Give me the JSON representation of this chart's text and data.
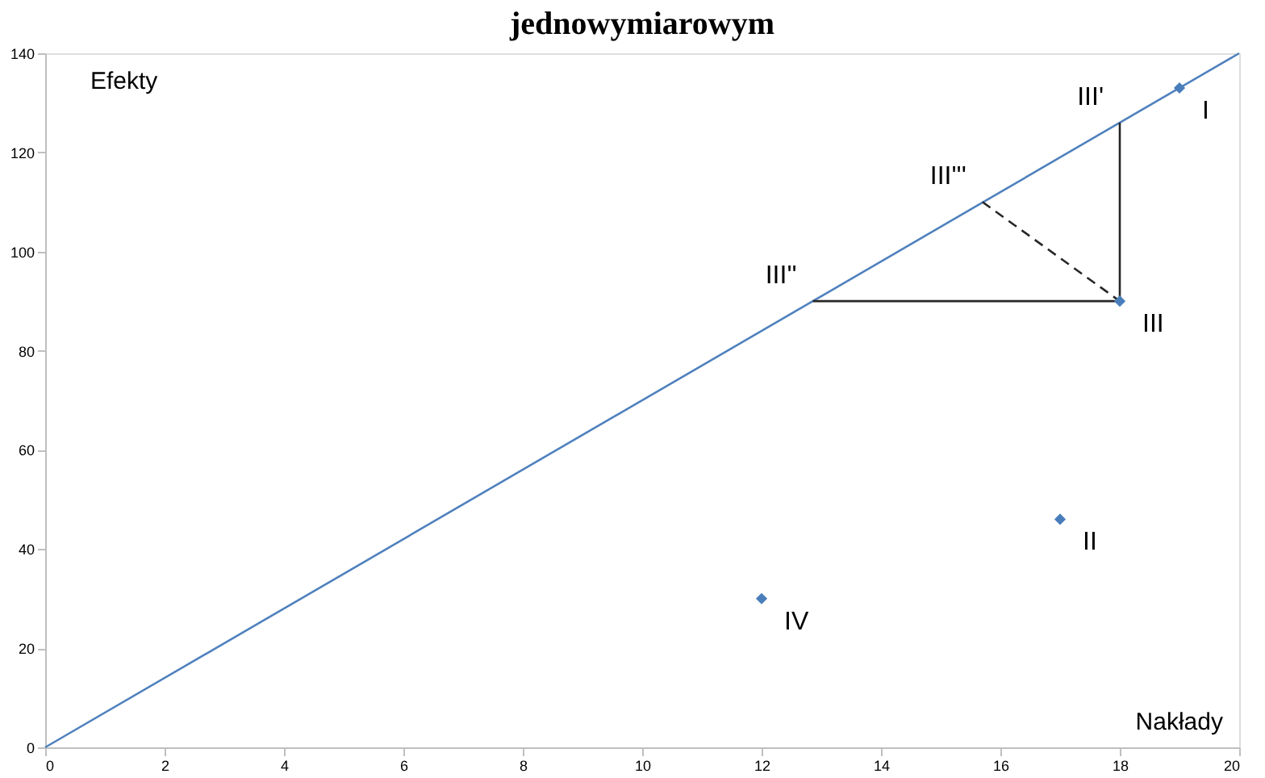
{
  "chart_data": {
    "type": "scatter",
    "title": "jednowymiarowym",
    "xlabel": "Nakłady",
    "ylabel": "Efekty",
    "xlim": [
      0,
      20
    ],
    "xticks": [
      0,
      2,
      4,
      6,
      8,
      10,
      12,
      14,
      16,
      18,
      20
    ],
    "ylim": [
      0,
      140
    ],
    "yticks": [
      0,
      20,
      40,
      60,
      80,
      100,
      120,
      140
    ],
    "series": [
      {
        "type": "line",
        "color": "#4f81bd",
        "x": [
          0,
          20
        ],
        "values": [
          0,
          140
        ],
        "line_style": "solid",
        "marker": "none"
      },
      {
        "type": "line",
        "color": "#262626",
        "x": [
          18,
          18
        ],
        "values": [
          90,
          126
        ],
        "line_style": "solid",
        "marker": "none"
      },
      {
        "type": "line",
        "color": "#262626",
        "x": [
          18,
          12.86
        ],
        "values": [
          90,
          90
        ],
        "line_style": "solid",
        "marker": "none"
      },
      {
        "type": "line",
        "color": "#262626",
        "x": [
          18,
          15.7
        ],
        "values": [
          90,
          110
        ],
        "line_style": "dashed",
        "marker": "none"
      },
      {
        "color": "#4a7ebb",
        "x": [
          19,
          17,
          18,
          12
        ],
        "values": [
          133,
          46,
          90,
          30
        ],
        "marker": "diamond"
      }
    ],
    "annotations": [
      {
        "text": "I",
        "x": 19,
        "y": 133
      },
      {
        "text": "II",
        "x": 17,
        "y": 46
      },
      {
        "text": "III",
        "x": 18,
        "y": 90
      },
      {
        "text": "IV",
        "x": 12,
        "y": 30
      },
      {
        "text": "III'",
        "x": 18,
        "y": 126
      },
      {
        "text": "III''",
        "x": 12.86,
        "y": 90
      },
      {
        "text": "III'''",
        "x": 15.7,
        "y": 110
      }
    ]
  }
}
